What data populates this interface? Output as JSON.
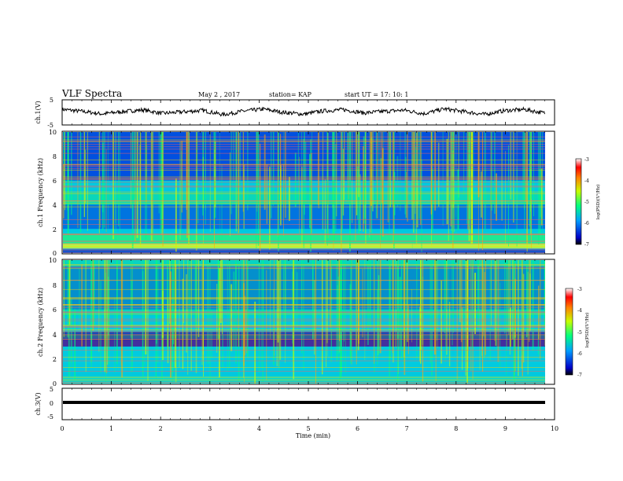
{
  "header": {
    "title": "VLF Spectra",
    "date": "May 2 , 2017",
    "station": "station= KAP",
    "start": "start UT = 17: 10: 1"
  },
  "chart_data": [
    {
      "type": "line",
      "panel": "ch1-waveform",
      "ylabel": "ch.1(V)",
      "ylim": [
        -5,
        5
      ],
      "yticks": [
        "5",
        "-5"
      ],
      "x_range": [
        0,
        9.8
      ],
      "series": [
        {
          "values": [
            1.2,
            0.4,
            -0.6,
            0.3,
            1.0,
            -0.4,
            0.2,
            0.8,
            -0.9,
            0.5,
            1.3,
            0.0,
            -0.7,
            0.6,
            1.1,
            -0.2,
            0.4,
            0.9,
            -0.5,
            1.4,
            0.3,
            -0.8,
            0.7,
            1.2,
            -0.3
          ]
        }
      ]
    },
    {
      "type": "heatmap",
      "panel": "ch1-spectrogram",
      "ylabel": "ch.1 Frequency (kHz)",
      "ylim": [
        0,
        10
      ],
      "yticks": [
        "10",
        "8",
        "6",
        "4",
        "2",
        "0"
      ],
      "colorbar": {
        "label": "log(PSD)(V²/Hz)",
        "range": [
          -7,
          -3
        ],
        "ticks": [
          "-3",
          "-4",
          "-5",
          "-6",
          "-7"
        ]
      }
    },
    {
      "type": "heatmap",
      "panel": "ch2-spectrogram",
      "ylabel": "ch.2 Frequency (kHz)",
      "ylim": [
        0,
        10
      ],
      "yticks": [
        "10",
        "8",
        "6",
        "4",
        "2",
        "0"
      ],
      "colorbar": {
        "label": "log(PSD)(V²/Hz)",
        "range": [
          -7,
          -3
        ],
        "ticks": [
          "-3",
          "-4",
          "-5",
          "-6",
          "-7"
        ]
      }
    },
    {
      "type": "line",
      "panel": "ch3-waveform",
      "ylabel": "ch.3(V)",
      "ylim": [
        -5,
        5
      ],
      "yticks": [
        "5",
        "0",
        "-5"
      ],
      "x_range": [
        0,
        9.8
      ],
      "series": [
        {
          "values": [
            0,
            0
          ]
        }
      ]
    }
  ],
  "xaxis": {
    "label": "Time (min)",
    "ticks": [
      "0",
      "1",
      "2",
      "3",
      "4",
      "5",
      "6",
      "7",
      "8",
      "9",
      "10"
    ],
    "range": [
      0,
      10
    ]
  },
  "colors": {
    "axis": "#000000",
    "trace": "#000000",
    "cmap": [
      "#00008b",
      "#0000ff",
      "#00c8ff",
      "#00ff7f",
      "#c8ff00",
      "#ff8000",
      "#ff0000",
      "#ffffff"
    ]
  }
}
